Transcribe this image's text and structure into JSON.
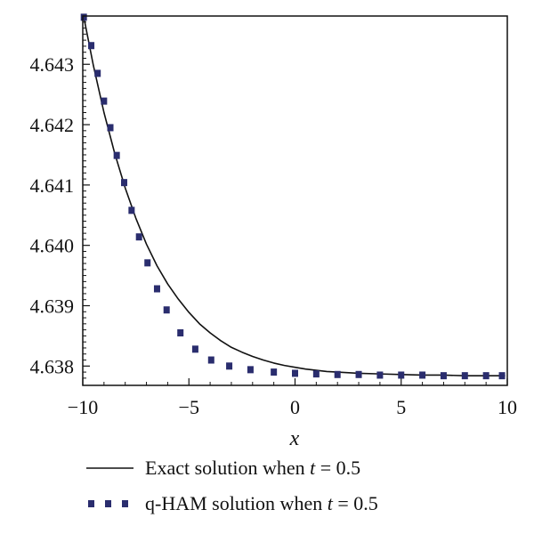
{
  "chart_data": {
    "type": "line",
    "title": "",
    "xlabel": "x",
    "ylabel": "",
    "xlim": [
      -10,
      10
    ],
    "ylim": [
      4.63768,
      4.6438
    ],
    "grid": false,
    "legend_position": "bottom",
    "x_ticks": [
      {
        "value": -10,
        "label": "−10"
      },
      {
        "value": -5,
        "label": "−5"
      },
      {
        "value": 0,
        "label": "0"
      },
      {
        "value": 5,
        "label": "5"
      },
      {
        "value": 10,
        "label": "10"
      }
    ],
    "y_ticks": [
      {
        "value": 4.638,
        "label": "4.638"
      },
      {
        "value": 4.639,
        "label": "4.639"
      },
      {
        "value": 4.64,
        "label": "4.640"
      },
      {
        "value": 4.641,
        "label": "4.641"
      },
      {
        "value": 4.642,
        "label": "4.642"
      },
      {
        "value": 4.643,
        "label": "4.643"
      }
    ],
    "series": [
      {
        "name": "Exact solution when t = 0.5",
        "legend_prefix": "Exact solution when ",
        "legend_var": "t",
        "legend_suffix": " = 0.5",
        "style": "solid",
        "color": "#111111",
        "x": [
          -9.95,
          -9.5,
          -9.0,
          -8.5,
          -8.0,
          -7.5,
          -7.0,
          -6.5,
          -6.0,
          -5.5,
          -5.0,
          -4.5,
          -4.0,
          -3.5,
          -3.0,
          -2.5,
          -2.0,
          -1.5,
          -1.0,
          -0.5,
          0.0,
          0.5,
          1.0,
          1.5,
          2.0,
          3.0,
          4.0,
          5.0,
          6.0,
          7.0,
          8.0,
          9.0,
          9.9
        ],
        "values": [
          4.64378,
          4.64298,
          4.6422,
          4.64153,
          4.64095,
          4.64045,
          4.64002,
          4.63966,
          4.63936,
          4.63911,
          4.63889,
          4.6387,
          4.63855,
          4.63842,
          4.63831,
          4.63823,
          4.63816,
          4.6381,
          4.63805,
          4.63801,
          4.63798,
          4.63795,
          4.63793,
          4.63791,
          4.6379,
          4.63788,
          4.63787,
          4.63786,
          4.63785,
          4.63785,
          4.63784,
          4.63784,
          4.63784
        ]
      },
      {
        "name": "q-HAM solution when t = 0.5",
        "legend_prefix": "q-HAM solution when ",
        "legend_var": "t",
        "legend_suffix": " = 0.5",
        "style": "square-markers",
        "color": "#2a2d6e",
        "x": [
          -9.95,
          -9.6,
          -9.3,
          -9.0,
          -8.7,
          -8.4,
          -8.05,
          -7.7,
          -7.35,
          -6.95,
          -6.5,
          -6.05,
          -5.4,
          -4.7,
          -3.95,
          -3.1,
          -2.1,
          -1.0,
          0.0,
          1.0,
          2.0,
          3.0,
          4.0,
          5.0,
          6.0,
          7.0,
          8.0,
          9.0,
          9.75
        ],
        "values": [
          4.64378,
          4.64331,
          4.64285,
          4.64239,
          4.64195,
          4.64149,
          4.64104,
          4.64058,
          4.64014,
          4.63971,
          4.63928,
          4.63893,
          4.63855,
          4.63828,
          4.6381,
          4.638,
          4.63794,
          4.6379,
          4.63788,
          4.63787,
          4.63786,
          4.63786,
          4.63785,
          4.63785,
          4.63785,
          4.63784,
          4.63784,
          4.63784,
          4.63784
        ]
      }
    ]
  }
}
